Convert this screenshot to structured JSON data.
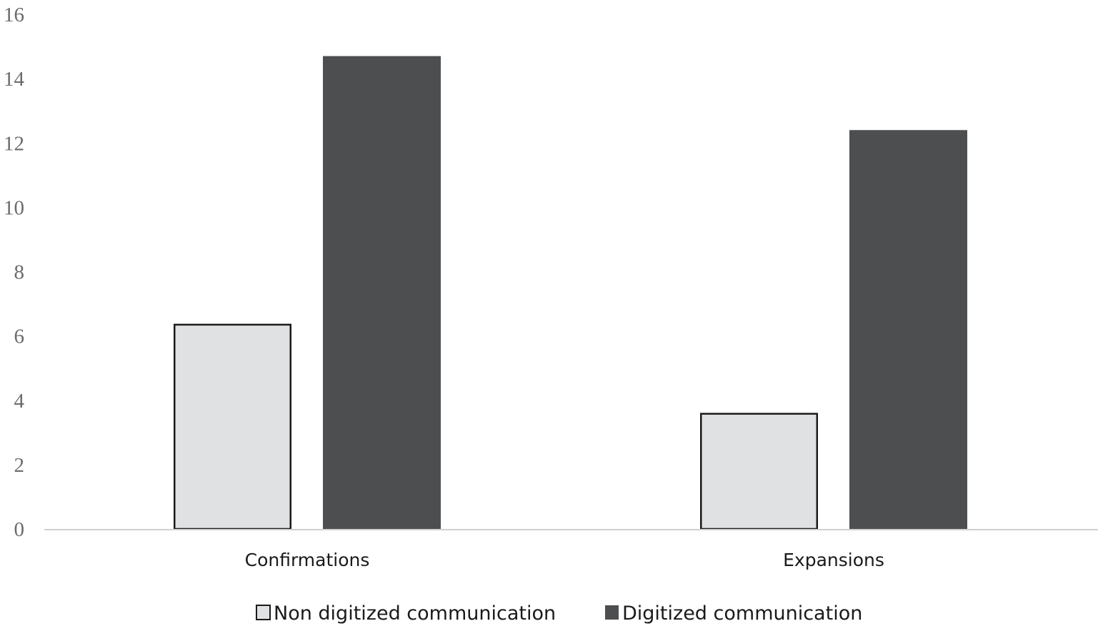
{
  "chart_data": {
    "type": "bar",
    "title": "",
    "xlabel": "",
    "ylabel": "",
    "categories": [
      "Confirmations",
      "Expansions"
    ],
    "series": [
      {
        "name": "Non digitized communication",
        "values": [
          6.35,
          3.58
        ],
        "color": "#e0e1e2",
        "stroke": "#1a1a1a"
      },
      {
        "name": "Digitized communication",
        "values": [
          14.7,
          12.4
        ],
        "color": "#4d4e50",
        "stroke": "#4d4e50"
      }
    ],
    "ylim": [
      0,
      16
    ],
    "yticks": [
      0,
      2,
      4,
      6,
      8,
      10,
      12,
      14,
      16
    ],
    "ytick_labels": [
      "0",
      "2",
      "4",
      "6",
      "8",
      "10",
      "12",
      "14",
      "16"
    ],
    "grid": false,
    "legend": "bottom-center"
  }
}
